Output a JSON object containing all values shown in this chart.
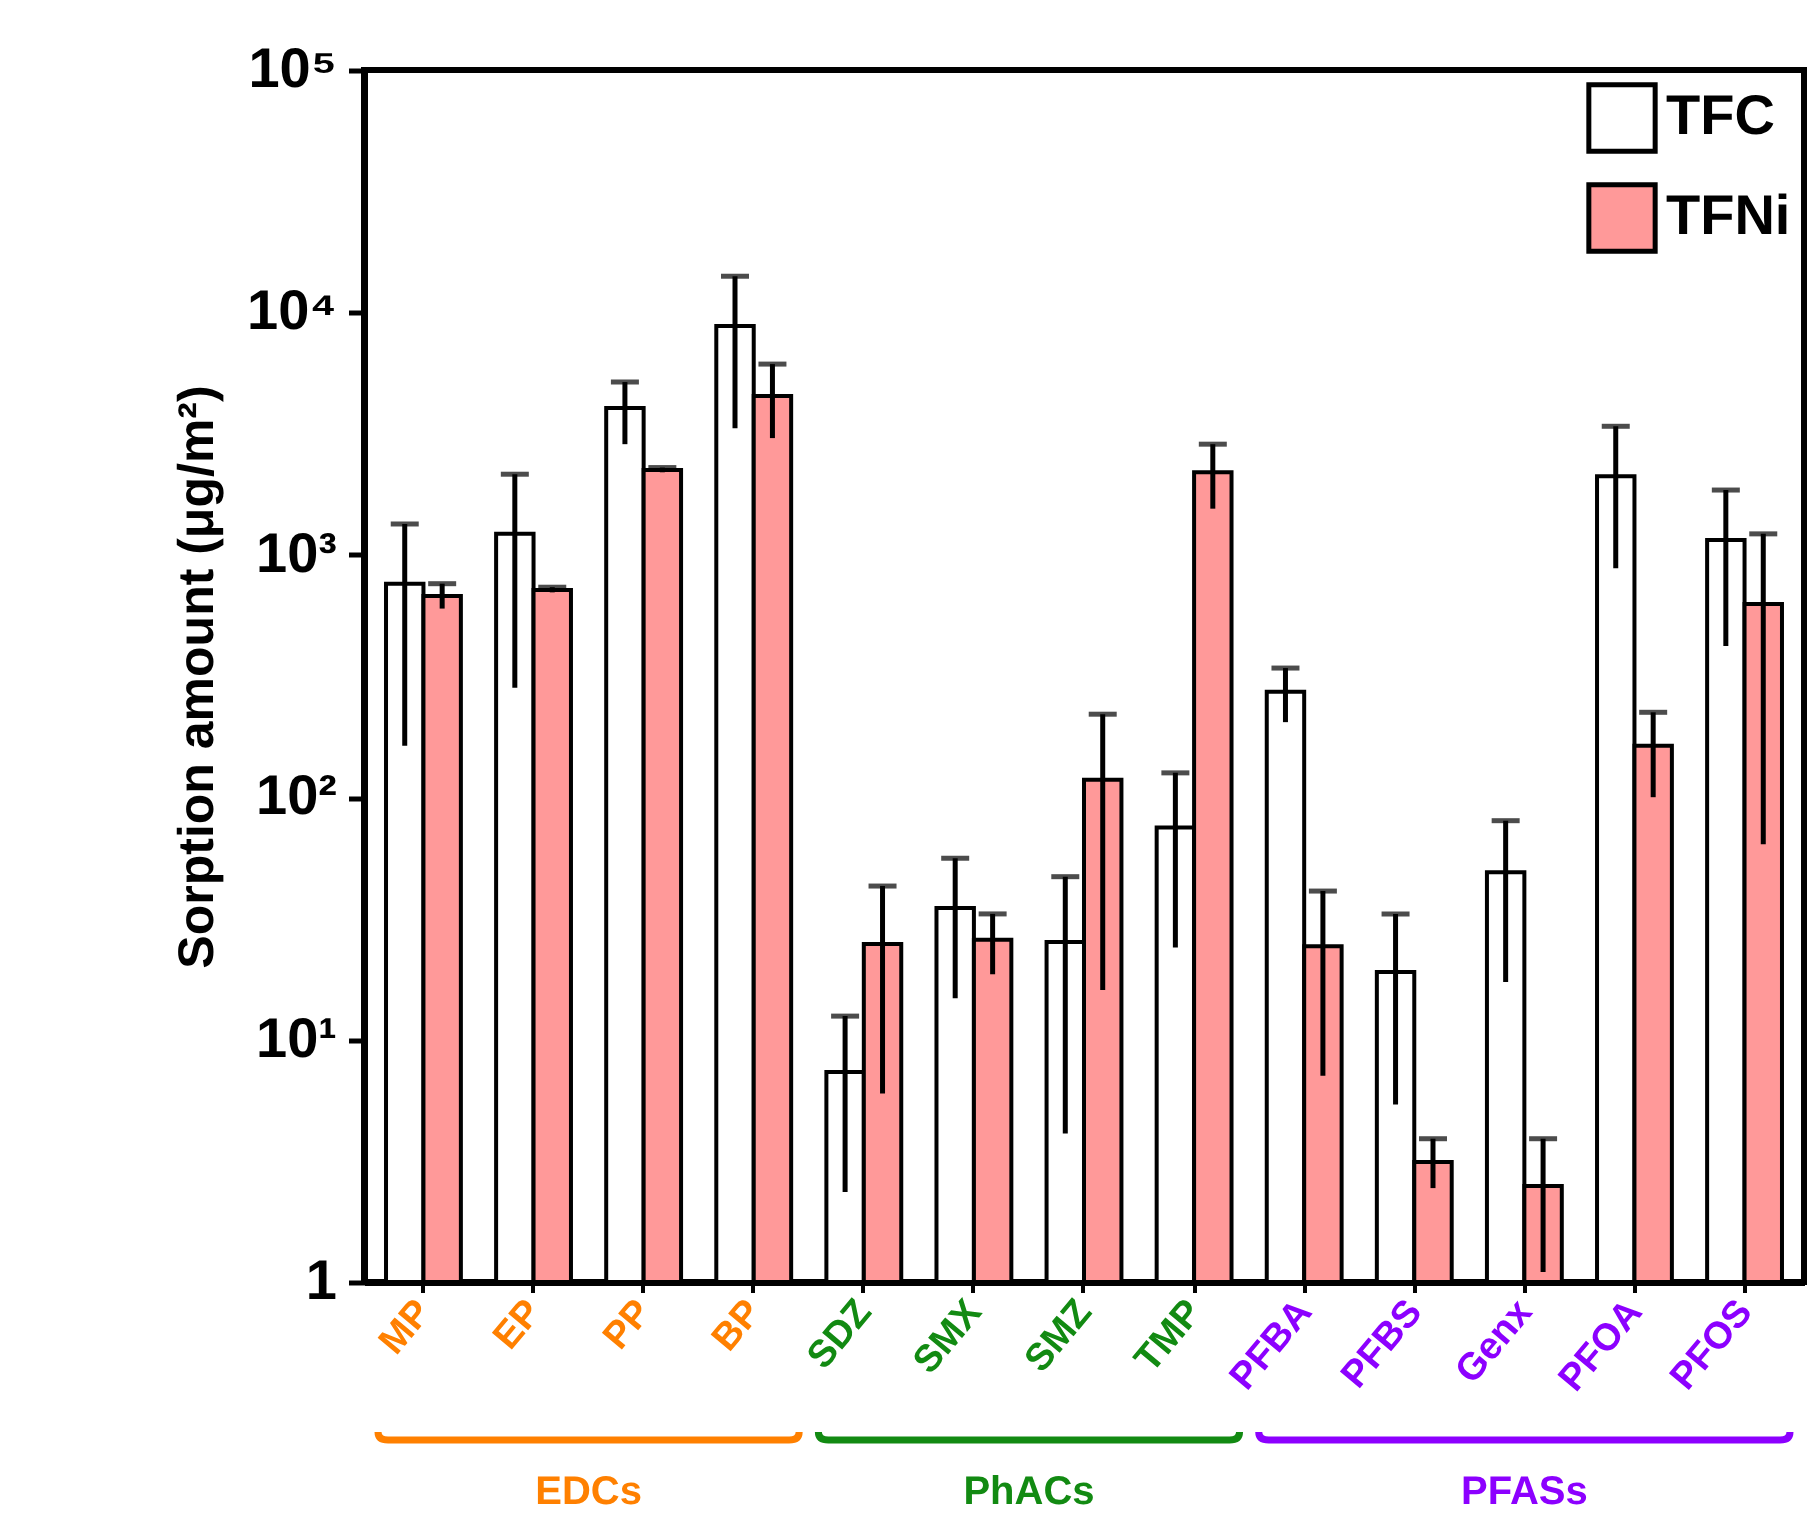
{
  "chart_data": {
    "type": "bar",
    "ylabel": "Sorption amount (μg/m²)",
    "categories": [
      "MP",
      "EP",
      "PP",
      "BP",
      "SDZ",
      "SMX",
      "SMZ",
      "TMP",
      "PFBA",
      "PFBS",
      "Genx",
      "PFOA",
      "PFOS"
    ],
    "series": [
      {
        "name": "TFC",
        "color": "#ffffff",
        "values": [
          760,
          1220,
          4030,
          8790,
          7.35,
          34.9,
          25.3,
          75,
          272,
          19,
          49,
          2110,
          1150
        ],
        "errors": [
          [
            163,
            1340
          ],
          [
            283,
            2150
          ],
          [
            2860,
            5160
          ],
          [
            3330,
            14100
          ],
          [
            2.35,
            12.5
          ],
          [
            14.8,
            56
          ],
          [
            4.1,
            47
          ],
          [
            24,
            126
          ],
          [
            204,
            341
          ],
          [
            5.4,
            33
          ],
          [
            17.3,
            80
          ],
          [
            880,
            3390
          ],
          [
            420,
            1850
          ]
        ]
      },
      {
        "name": "TFNi",
        "color": "#ff9999",
        "values": [
          676,
          716,
          2240,
          4520,
          24.8,
          25.8,
          118,
          2190,
          24.3,
          3.13,
          2.49,
          163,
          627
        ],
        "errors": [
          [
            600,
            760
          ],
          [
            700,
            735
          ],
          [
            2190,
            2290
          ],
          [
            3030,
            6120
          ],
          [
            6,
            43
          ],
          [
            18.6,
            33
          ],
          [
            16,
            220
          ],
          [
            1550,
            2860
          ],
          [
            7.1,
            41
          ],
          [
            2.44,
            3.9
          ],
          [
            1.1,
            3.9
          ],
          [
            100,
            224
          ],
          [
            64,
            1220
          ]
        ]
      }
    ],
    "ylim": [
      1,
      100000
    ],
    "yticks": [
      1,
      {
        "value": 10,
        "label": "10¹"
      },
      {
        "value": 100,
        "label": "10²"
      },
      {
        "value": 1000,
        "label": "10³"
      },
      {
        "value": 10000,
        "label": "10⁴"
      },
      {
        "value": 100000,
        "label": "10⁵"
      }
    ],
    "log": true,
    "legend": "top right",
    "annotations": [
      "EDCs",
      "PhACs",
      "PFASs"
    ]
  }
}
